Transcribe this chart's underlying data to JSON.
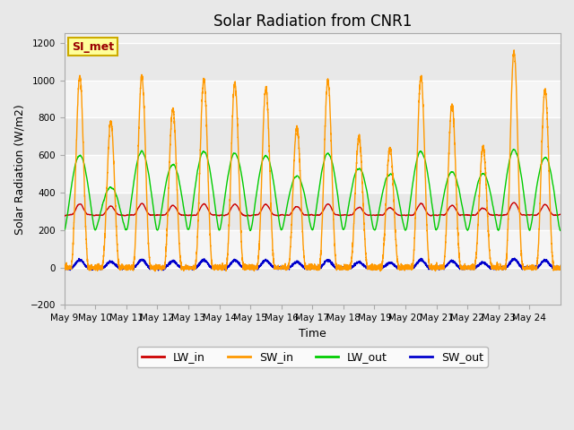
{
  "title": "Solar Radiation from CNR1",
  "xlabel": "Time",
  "ylabel": "Solar Radiation (W/m2)",
  "ylim": [
    -200,
    1250
  ],
  "xlim": [
    0,
    480
  ],
  "yticks": [
    -200,
    0,
    200,
    400,
    600,
    800,
    1000,
    1200
  ],
  "xtick_labels": [
    "May 9",
    "May 10",
    "May 11",
    "May 12",
    "May 13",
    "May 14",
    "May 15",
    "May 16",
    "May 17",
    "May 18",
    "May 19",
    "May 20",
    "May 21",
    "May 22",
    "May 23",
    "May 24"
  ],
  "legend_labels": [
    "LW_in",
    "SW_in",
    "LW_out",
    "SW_out"
  ],
  "legend_colors": [
    "#cc0000",
    "#ff9900",
    "#00cc00",
    "#0000cc"
  ],
  "annotation_text": "SI_met",
  "annotation_color": "#990000",
  "annotation_bg": "#ffff99",
  "annotation_border": "#ccaa00",
  "background_color": "#e8e8e8",
  "plot_bg_light": "#f5f5f5",
  "plot_bg_dark": "#dcdcdc",
  "grid_color": "#ffffff",
  "title_fontsize": 12,
  "n_days": 16,
  "day_start": 9,
  "sw_in_peaks": [
    1020,
    780,
    1020,
    850,
    1005,
    985,
    960,
    750,
    1000,
    695,
    640,
    1020,
    870,
    640,
    1150,
    950
  ],
  "lw_out_day_peaks": [
    600,
    430,
    620,
    550,
    620,
    610,
    600,
    490,
    610,
    530,
    500,
    620,
    510,
    500,
    630,
    590
  ],
  "lw_out_night": 200,
  "lw_in_base": 280,
  "sw_out_scale": 0.04
}
